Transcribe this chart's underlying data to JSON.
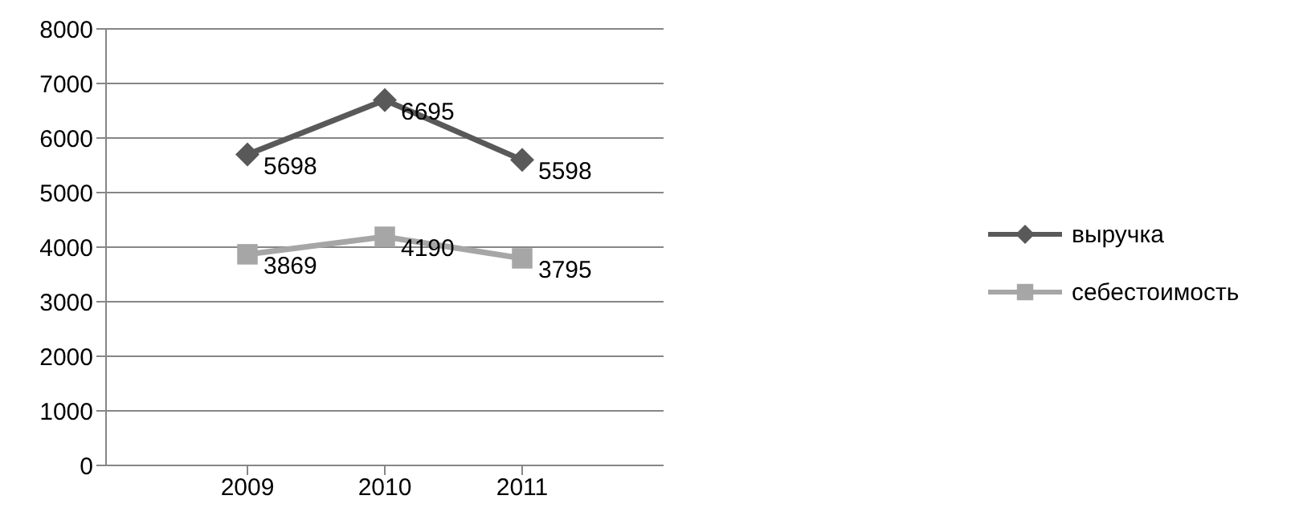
{
  "chart_data": {
    "type": "line",
    "categories": [
      "2009",
      "2010",
      "2011"
    ],
    "series": [
      {
        "name": "выручка",
        "color": "#595959",
        "values": [
          5698,
          6695,
          5598
        ],
        "marker": "diamond"
      },
      {
        "name": "себестоимость",
        "color": "#a6a6a6",
        "values": [
          3869,
          4190,
          3795
        ],
        "marker": "square"
      }
    ],
    "ylim": [
      0,
      8000
    ],
    "yticks": [
      0,
      1000,
      2000,
      3000,
      4000,
      5000,
      6000,
      7000,
      8000
    ],
    "grid": "y",
    "legend": "right",
    "data_labels": true,
    "line_style": "solid"
  }
}
